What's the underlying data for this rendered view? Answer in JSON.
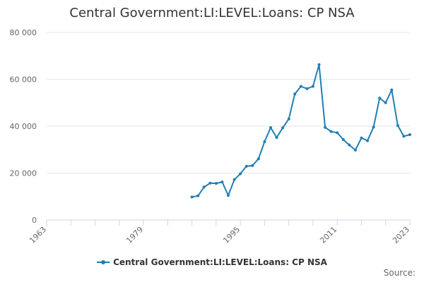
{
  "chart_data": {
    "type": "line",
    "title": "Central Government:LI:LEVEL:Loans: CP NSA",
    "xlabel": "",
    "ylabel": "",
    "xlim": [
      1963,
      2023
    ],
    "ylim": [
      0,
      80000
    ],
    "x_ticks": [
      1963,
      1979,
      1995,
      2011,
      2023
    ],
    "y_ticks": [
      0,
      20000,
      40000,
      60000,
      80000
    ],
    "y_tick_labels": [
      "0",
      "20 000",
      "40 000",
      "60 000",
      "80 000"
    ],
    "grid": "horizontal",
    "legend_position": "bottom",
    "series": [
      {
        "name": "Central Government:LI:LEVEL:Loans: CP NSA",
        "color": "#1f7fb4",
        "x": [
          1987,
          1988,
          1989,
          1990,
          1991,
          1992,
          1993,
          1994,
          1995,
          1996,
          1997,
          1998,
          1999,
          2000,
          2001,
          2002,
          2003,
          2004,
          2005,
          2006,
          2007,
          2008,
          2009,
          2010,
          2011,
          2012,
          2013,
          2014,
          2015,
          2016,
          2017,
          2018,
          2019,
          2020,
          2021,
          2022,
          2023
        ],
        "values": [
          9800,
          10300,
          14000,
          15700,
          15600,
          16200,
          10500,
          17200,
          19700,
          22900,
          23200,
          26100,
          33400,
          39400,
          35200,
          39300,
          43100,
          53700,
          57000,
          56000,
          57000,
          66300,
          39500,
          37700,
          37200,
          34300,
          32000,
          29800,
          35000,
          33800,
          39600,
          52000,
          50000,
          55500,
          40300,
          35700,
          36400
        ]
      }
    ]
  },
  "legend": {
    "label": "Central Government:LI:LEVEL:Loans: CP NSA"
  },
  "footer": {
    "source_label": "Source:"
  }
}
